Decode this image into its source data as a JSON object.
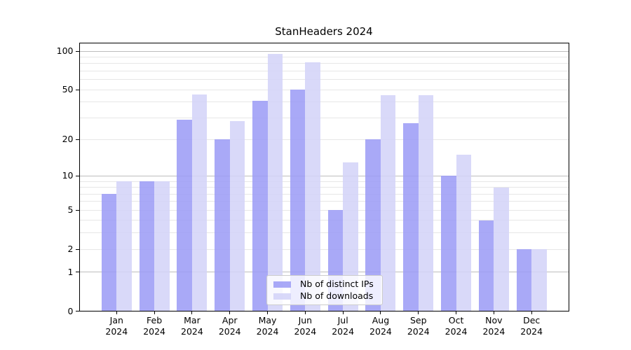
{
  "chart_data": {
    "type": "bar",
    "title": "StanHeaders 2024",
    "categories": [
      {
        "month": "Jan",
        "year": "2024"
      },
      {
        "month": "Feb",
        "year": "2024"
      },
      {
        "month": "Mar",
        "year": "2024"
      },
      {
        "month": "Apr",
        "year": "2024"
      },
      {
        "month": "May",
        "year": "2024"
      },
      {
        "month": "Jun",
        "year": "2024"
      },
      {
        "month": "Jul",
        "year": "2024"
      },
      {
        "month": "Aug",
        "year": "2024"
      },
      {
        "month": "Sep",
        "year": "2024"
      },
      {
        "month": "Oct",
        "year": "2024"
      },
      {
        "month": "Nov",
        "year": "2024"
      },
      {
        "month": "Dec",
        "year": "2024"
      }
    ],
    "series": [
      {
        "name": "Nb of distinct IPs",
        "color": "#9A9AF6D9",
        "values": [
          7,
          9,
          29,
          20,
          41,
          50,
          5,
          20,
          27,
          10,
          4,
          2
        ]
      },
      {
        "name": "Nb of downloads",
        "color": "#D2D2F8D9",
        "values": [
          9,
          9,
          46,
          28,
          95,
          82,
          13,
          45,
          45,
          15,
          8,
          2
        ]
      }
    ],
    "y_axis": {
      "scale": "log1p",
      "ylim": [
        0,
        100
      ],
      "tick_labels": [
        0,
        1,
        2,
        5,
        10,
        20,
        50,
        100
      ],
      "major_gridlines": [
        1,
        10,
        100
      ],
      "minor_gridlines": [
        2,
        3,
        4,
        5,
        6,
        7,
        8,
        9,
        20,
        30,
        40,
        50,
        60,
        70,
        80,
        90
      ],
      "major_grid_color": "#BDBDBD",
      "minor_grid_color": "#E7E7E7"
    },
    "legend": {
      "position": "lower center",
      "entries": [
        "Nb of distinct IPs",
        "Nb of downloads"
      ]
    }
  }
}
